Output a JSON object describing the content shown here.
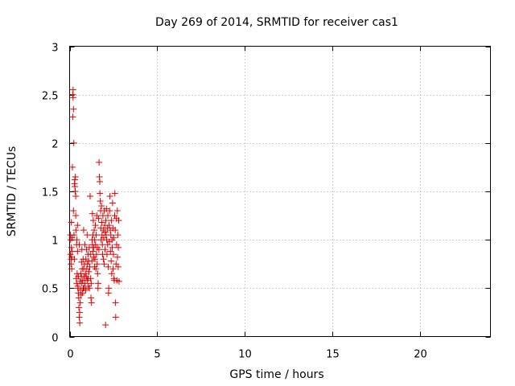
{
  "chart_data": {
    "type": "scatter",
    "title": "Day 269 of 2014, SRMTID for receiver cas1",
    "xlabel": "GPS time / hours",
    "ylabel": "SRMTID / TECUs",
    "xlim": [
      0,
      24
    ],
    "ylim": [
      0,
      3
    ],
    "xticks": [
      0,
      5,
      10,
      15,
      20
    ],
    "yticks": [
      0,
      0.5,
      1,
      1.5,
      2,
      2.5,
      3
    ],
    "xtick_labels": [
      "0",
      "5",
      "10",
      "15",
      "20"
    ],
    "ytick_labels": [
      "0",
      "0.5",
      "1",
      "1.5",
      "2",
      "2.5",
      "3"
    ],
    "grid": true,
    "marker": "+",
    "series": [
      {
        "name": "SRMTID",
        "color": "#dd0000",
        "points": [
          [
            0.05,
            1.05
          ],
          [
            0.05,
            0.85
          ],
          [
            0.06,
            1.0
          ],
          [
            0.08,
            0.8
          ],
          [
            0.08,
            0.75
          ],
          [
            0.1,
            1.18
          ],
          [
            0.1,
            0.92
          ],
          [
            0.12,
            0.82
          ],
          [
            0.12,
            0.7
          ],
          [
            0.14,
            1.02
          ],
          [
            0.15,
            0.88
          ],
          [
            0.16,
            1.75
          ],
          [
            0.18,
            2.5
          ],
          [
            0.18,
            2.27
          ],
          [
            0.2,
            2.47
          ],
          [
            0.2,
            2.55
          ],
          [
            0.22,
            2.35
          ],
          [
            0.22,
            1.3
          ],
          [
            0.24,
            2.0
          ],
          [
            0.25,
            1.05
          ],
          [
            0.27,
            0.8
          ],
          [
            0.28,
            1.58
          ],
          [
            0.3,
            1.62
          ],
          [
            0.3,
            1.55
          ],
          [
            0.32,
            1.5
          ],
          [
            0.33,
            1.65
          ],
          [
            0.35,
            1.45
          ],
          [
            0.35,
            1.25
          ],
          [
            0.36,
            1.1
          ],
          [
            0.38,
            0.6
          ],
          [
            0.4,
            0.55
          ],
          [
            0.4,
            0.95
          ],
          [
            0.42,
            1.0
          ],
          [
            0.43,
            0.65
          ],
          [
            0.45,
            1.15
          ],
          [
            0.45,
            0.88
          ],
          [
            0.47,
            0.52
          ],
          [
            0.48,
            0.5
          ],
          [
            0.5,
            0.45
          ],
          [
            0.5,
            0.62
          ],
          [
            0.52,
            0.4
          ],
          [
            0.53,
            0.3
          ],
          [
            0.55,
            0.2
          ],
          [
            0.55,
            0.95
          ],
          [
            0.57,
            0.25
          ],
          [
            0.58,
            0.14
          ],
          [
            0.6,
            0.35
          ],
          [
            0.6,
            0.57
          ],
          [
            0.62,
            0.48
          ],
          [
            0.63,
            0.65
          ],
          [
            0.65,
            0.43
          ],
          [
            0.67,
            0.62
          ],
          [
            0.68,
            0.77
          ],
          [
            0.7,
            0.55
          ],
          [
            0.7,
            0.9
          ],
          [
            0.72,
            0.7
          ],
          [
            0.73,
            0.45
          ],
          [
            0.75,
            0.58
          ],
          [
            0.77,
            0.8
          ],
          [
            0.78,
            0.5
          ],
          [
            0.8,
            0.7
          ],
          [
            0.8,
            1.1
          ],
          [
            0.82,
            0.5
          ],
          [
            0.83,
            0.62
          ],
          [
            0.85,
            0.75
          ],
          [
            0.87,
            0.95
          ],
          [
            0.88,
            0.55
          ],
          [
            0.9,
            0.65
          ],
          [
            0.92,
            0.48
          ],
          [
            0.93,
            0.8
          ],
          [
            0.95,
            0.62
          ],
          [
            0.97,
            0.9
          ],
          [
            0.98,
            0.7
          ],
          [
            1.0,
            0.58
          ],
          [
            1.0,
            1.05
          ],
          [
            1.02,
            0.75
          ],
          [
            1.05,
            0.6
          ],
          [
            1.05,
            0.85
          ],
          [
            1.07,
            0.52
          ],
          [
            1.08,
            0.78
          ],
          [
            1.1,
            0.67
          ],
          [
            1.12,
            0.92
          ],
          [
            1.13,
            0.5
          ],
          [
            1.15,
            0.72
          ],
          [
            1.17,
            1.45
          ],
          [
            1.18,
            0.85
          ],
          [
            1.2,
            0.6
          ],
          [
            1.22,
            0.4
          ],
          [
            1.23,
            0.55
          ],
          [
            1.25,
            0.35
          ],
          [
            1.27,
            0.78
          ],
          [
            1.28,
            1.0
          ],
          [
            1.3,
            0.95
          ],
          [
            1.3,
            1.27
          ],
          [
            1.32,
            0.88
          ],
          [
            1.33,
            1.05
          ],
          [
            1.35,
            1.2
          ],
          [
            1.37,
            0.92
          ],
          [
            1.38,
            0.82
          ],
          [
            1.4,
            1.1
          ],
          [
            1.42,
            0.72
          ],
          [
            1.43,
            1.0
          ],
          [
            1.45,
            0.8
          ],
          [
            1.47,
            1.15
          ],
          [
            1.48,
            0.95
          ],
          [
            1.5,
            0.7
          ],
          [
            1.52,
            1.05
          ],
          [
            1.53,
            0.85
          ],
          [
            1.55,
            1.25
          ],
          [
            1.57,
            0.75
          ],
          [
            1.58,
            0.92
          ],
          [
            1.6,
            0.65
          ],
          [
            1.62,
            0.5
          ],
          [
            1.63,
            0.55
          ],
          [
            1.65,
            1.22
          ],
          [
            1.67,
            0.9
          ],
          [
            1.68,
            1.8
          ],
          [
            1.7,
            1.65
          ],
          [
            1.72,
            1.6
          ],
          [
            1.73,
            1.48
          ],
          [
            1.75,
            1.4
          ],
          [
            1.77,
            1.3
          ],
          [
            1.78,
            1.12
          ],
          [
            1.8,
            1.0
          ],
          [
            1.82,
            1.35
          ],
          [
            1.83,
            1.18
          ],
          [
            1.85,
            1.05
          ],
          [
            1.87,
            0.95
          ],
          [
            1.88,
            0.85
          ],
          [
            1.9,
            1.25
          ],
          [
            1.92,
            1.1
          ],
          [
            1.93,
            0.8
          ],
          [
            1.95,
            1.02
          ],
          [
            1.97,
            0.75
          ],
          [
            1.98,
            1.3
          ],
          [
            2.0,
            1.15
          ],
          [
            2.02,
            0.9
          ],
          [
            2.03,
            1.08
          ],
          [
            2.05,
            0.12
          ],
          [
            2.07,
            1.2
          ],
          [
            2.08,
            1.05
          ],
          [
            2.1,
            1.32
          ],
          [
            2.12,
            1.0
          ],
          [
            2.13,
            0.85
          ],
          [
            2.15,
            1.12
          ],
          [
            2.17,
            0.95
          ],
          [
            2.18,
            1.25
          ],
          [
            2.2,
            0.72
          ],
          [
            2.22,
            0.45
          ],
          [
            2.23,
            0.5
          ],
          [
            2.25,
            1.15
          ],
          [
            2.27,
            0.98
          ],
          [
            2.28,
            1.3
          ],
          [
            2.3,
            1.45
          ],
          [
            2.32,
            1.1
          ],
          [
            2.33,
            0.88
          ],
          [
            2.35,
            1.05
          ],
          [
            2.37,
            0.78
          ],
          [
            2.38,
            1.2
          ],
          [
            2.4,
            0.65
          ],
          [
            2.42,
            1.0
          ],
          [
            2.43,
            0.92
          ],
          [
            2.45,
            1.38
          ],
          [
            2.47,
            1.12
          ],
          [
            2.48,
            0.7
          ],
          [
            2.5,
            0.85
          ],
          [
            2.52,
            1.02
          ],
          [
            2.53,
            0.6
          ],
          [
            2.55,
            0.58
          ],
          [
            2.57,
            1.25
          ],
          [
            2.58,
            1.48
          ],
          [
            2.6,
            1.1
          ],
          [
            2.62,
            0.35
          ],
          [
            2.63,
            0.2
          ],
          [
            2.65,
            0.75
          ],
          [
            2.67,
            1.22
          ],
          [
            2.68,
            0.95
          ],
          [
            2.7,
            0.58
          ],
          [
            2.72,
            1.3
          ],
          [
            2.73,
            0.82
          ],
          [
            2.75,
            1.05
          ],
          [
            2.77,
            0.72
          ],
          [
            2.78,
            0.92
          ],
          [
            2.8,
            1.2
          ],
          [
            2.82,
            0.57
          ]
        ]
      }
    ]
  }
}
